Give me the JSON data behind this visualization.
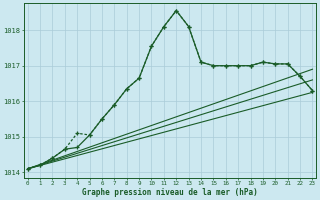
{
  "xlabel": "Graphe pression niveau de la mer (hPa)",
  "background_color": "#cce8f0",
  "grid_color": "#aaccd8",
  "line_color": "#1a5c28",
  "x_values": [
    0,
    1,
    2,
    3,
    4,
    5,
    6,
    7,
    8,
    9,
    10,
    11,
    12,
    13,
    14,
    15,
    16,
    17,
    18,
    19,
    20,
    21,
    22,
    23
  ],
  "line1": [
    1014.1,
    1014.2,
    1014.4,
    1014.65,
    1014.7,
    1015.05,
    1015.5,
    1015.9,
    1016.35,
    1016.65,
    1017.55,
    1018.1,
    1018.55,
    1018.1,
    1017.1,
    1017.0,
    1017.0,
    1017.0,
    1017.0,
    1017.1,
    1017.05,
    1017.05,
    1016.7,
    1016.3
  ],
  "line2": [
    1014.1,
    1014.2,
    1014.4,
    1014.65,
    1015.1,
    1015.05,
    1015.5,
    1015.9,
    1016.35,
    1016.65,
    1017.55,
    1018.1,
    1018.55,
    1018.1,
    1017.1,
    1017.0,
    1017.0,
    1017.0,
    1017.0,
    1017.1,
    1017.05,
    1017.05,
    1016.7,
    1016.3
  ],
  "straight_lines": [
    {
      "x0": 0,
      "y0": 1014.1,
      "x1": 23,
      "y1": 1016.9
    },
    {
      "x0": 0,
      "y0": 1014.1,
      "x1": 23,
      "y1": 1016.6
    },
    {
      "x0": 0,
      "y0": 1014.1,
      "x1": 23,
      "y1": 1016.25
    }
  ],
  "ylim": [
    1013.85,
    1018.75
  ],
  "yticks": [
    1014,
    1015,
    1016,
    1017,
    1018
  ],
  "xlim": [
    -0.3,
    23.3
  ],
  "xticks": [
    0,
    1,
    2,
    3,
    4,
    5,
    6,
    7,
    8,
    9,
    10,
    11,
    12,
    13,
    14,
    15,
    16,
    17,
    18,
    19,
    20,
    21,
    22,
    23
  ]
}
